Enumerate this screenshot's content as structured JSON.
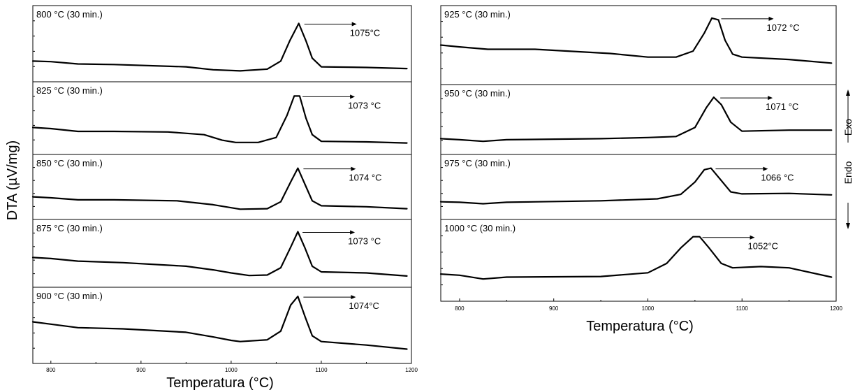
{
  "ylabel": "DTA (µV/mg)",
  "side_labels": {
    "exo": "Exo",
    "endo": "Endo"
  },
  "chart_data": [
    {
      "type": "line",
      "xlabel": "Temperatura (°C)",
      "ylabel": "DTA (µV/mg)",
      "xlim": [
        780,
        1200
      ],
      "x_ticks": [
        800,
        900,
        1000,
        1100,
        1200
      ],
      "y_ticks_labelled": false,
      "panels": [
        {
          "label": "800 °C (30 min.)",
          "peak_label": "1075°C",
          "peak_x": 1075,
          "points": [
            [
              780,
              0.2
            ],
            [
              800,
              0.19
            ],
            [
              830,
              0.15
            ],
            [
              870,
              0.14
            ],
            [
              950,
              0.1
            ],
            [
              980,
              0.05
            ],
            [
              1010,
              0.03
            ],
            [
              1040,
              0.06
            ],
            [
              1055,
              0.2
            ],
            [
              1065,
              0.55
            ],
            [
              1075,
              0.85
            ],
            [
              1083,
              0.55
            ],
            [
              1090,
              0.25
            ],
            [
              1100,
              0.1
            ],
            [
              1150,
              0.09
            ],
            [
              1195,
              0.07
            ]
          ]
        },
        {
          "label": "825 °C (30 min.)",
          "peak_label": "1073 °C",
          "peak_x": 1073,
          "points": [
            [
              780,
              0.33
            ],
            [
              800,
              0.31
            ],
            [
              830,
              0.26
            ],
            [
              870,
              0.26
            ],
            [
              930,
              0.25
            ],
            [
              970,
              0.2
            ],
            [
              990,
              0.1
            ],
            [
              1005,
              0.06
            ],
            [
              1030,
              0.06
            ],
            [
              1050,
              0.15
            ],
            [
              1062,
              0.55
            ],
            [
              1070,
              0.9
            ],
            [
              1076,
              0.9
            ],
            [
              1083,
              0.5
            ],
            [
              1090,
              0.2
            ],
            [
              1100,
              0.08
            ],
            [
              1150,
              0.07
            ],
            [
              1195,
              0.05
            ]
          ]
        },
        {
          "label": "850 °C (30 min.)",
          "peak_label": "1074 °C",
          "peak_x": 1074,
          "points": [
            [
              780,
              0.3
            ],
            [
              800,
              0.28
            ],
            [
              830,
              0.24
            ],
            [
              870,
              0.24
            ],
            [
              940,
              0.22
            ],
            [
              980,
              0.14
            ],
            [
              1000,
              0.08
            ],
            [
              1010,
              0.05
            ],
            [
              1040,
              0.06
            ],
            [
              1055,
              0.2
            ],
            [
              1066,
              0.6
            ],
            [
              1074,
              0.88
            ],
            [
              1082,
              0.55
            ],
            [
              1090,
              0.22
            ],
            [
              1100,
              0.12
            ],
            [
              1150,
              0.1
            ],
            [
              1195,
              0.06
            ]
          ]
        },
        {
          "label": "875 °C (30 min.)",
          "peak_label": "1073 °C",
          "peak_x": 1073,
          "points": [
            [
              780,
              0.42
            ],
            [
              800,
              0.4
            ],
            [
              830,
              0.35
            ],
            [
              880,
              0.32
            ],
            [
              950,
              0.25
            ],
            [
              980,
              0.18
            ],
            [
              1000,
              0.12
            ],
            [
              1020,
              0.07
            ],
            [
              1040,
              0.08
            ],
            [
              1055,
              0.22
            ],
            [
              1066,
              0.62
            ],
            [
              1074,
              0.92
            ],
            [
              1082,
              0.6
            ],
            [
              1090,
              0.25
            ],
            [
              1100,
              0.14
            ],
            [
              1150,
              0.12
            ],
            [
              1195,
              0.06
            ]
          ]
        },
        {
          "label": "900 °C (30 min.)",
          "peak_label": "1074°C",
          "peak_x": 1074,
          "points": [
            [
              780,
              0.56
            ],
            [
              800,
              0.52
            ],
            [
              830,
              0.46
            ],
            [
              880,
              0.44
            ],
            [
              950,
              0.38
            ],
            [
              980,
              0.3
            ],
            [
              1000,
              0.24
            ],
            [
              1010,
              0.22
            ],
            [
              1040,
              0.25
            ],
            [
              1055,
              0.4
            ],
            [
              1066,
              0.85
            ],
            [
              1074,
              1.0
            ],
            [
              1082,
              0.65
            ],
            [
              1090,
              0.32
            ],
            [
              1100,
              0.22
            ],
            [
              1150,
              0.16
            ],
            [
              1195,
              0.09
            ]
          ]
        }
      ]
    },
    {
      "type": "line",
      "xlabel": "Temperatura (°C)",
      "xlim": [
        780,
        1200
      ],
      "x_ticks": [
        800,
        900,
        1000,
        1100,
        1200
      ],
      "y_ticks_labelled": false,
      "panels": [
        {
          "label": "925 °C (30 min.)",
          "peak_label": "1072 °C",
          "peak_x": 1072,
          "points": [
            [
              780,
              0.5
            ],
            [
              800,
              0.47
            ],
            [
              830,
              0.43
            ],
            [
              880,
              0.43
            ],
            [
              960,
              0.36
            ],
            [
              1000,
              0.3
            ],
            [
              1030,
              0.3
            ],
            [
              1048,
              0.4
            ],
            [
              1060,
              0.7
            ],
            [
              1068,
              0.95
            ],
            [
              1075,
              0.92
            ],
            [
              1082,
              0.58
            ],
            [
              1090,
              0.35
            ],
            [
              1100,
              0.3
            ],
            [
              1150,
              0.26
            ],
            [
              1195,
              0.2
            ]
          ]
        },
        {
          "label": "950 °C (30 min.)",
          "peak_label": "1071 °C",
          "peak_x": 1071,
          "points": [
            [
              780,
              0.14
            ],
            [
              800,
              0.12
            ],
            [
              825,
              0.09
            ],
            [
              850,
              0.12
            ],
            [
              950,
              0.14
            ],
            [
              1000,
              0.16
            ],
            [
              1030,
              0.18
            ],
            [
              1050,
              0.35
            ],
            [
              1062,
              0.72
            ],
            [
              1070,
              0.92
            ],
            [
              1078,
              0.78
            ],
            [
              1088,
              0.45
            ],
            [
              1100,
              0.28
            ],
            [
              1150,
              0.3
            ],
            [
              1195,
              0.3
            ]
          ]
        },
        {
          "label": "975 °C (30 min.)",
          "peak_label": "1066 °C",
          "peak_x": 1066,
          "points": [
            [
              780,
              0.2
            ],
            [
              800,
              0.19
            ],
            [
              825,
              0.16
            ],
            [
              850,
              0.19
            ],
            [
              950,
              0.22
            ],
            [
              1010,
              0.26
            ],
            [
              1035,
              0.35
            ],
            [
              1050,
              0.6
            ],
            [
              1060,
              0.85
            ],
            [
              1067,
              0.88
            ],
            [
              1075,
              0.7
            ],
            [
              1088,
              0.4
            ],
            [
              1100,
              0.36
            ],
            [
              1150,
              0.37
            ],
            [
              1195,
              0.34
            ]
          ]
        },
        {
          "label": "1000 °C (30 min.)",
          "peak_label": "1052°C",
          "peak_x": 1052,
          "points": [
            [
              780,
              0.28
            ],
            [
              800,
              0.26
            ],
            [
              825,
              0.2
            ],
            [
              850,
              0.23
            ],
            [
              950,
              0.24
            ],
            [
              1000,
              0.3
            ],
            [
              1020,
              0.45
            ],
            [
              1035,
              0.7
            ],
            [
              1048,
              0.88
            ],
            [
              1055,
              0.88
            ],
            [
              1065,
              0.7
            ],
            [
              1078,
              0.45
            ],
            [
              1090,
              0.38
            ],
            [
              1120,
              0.4
            ],
            [
              1150,
              0.38
            ],
            [
              1195,
              0.23
            ]
          ]
        }
      ]
    }
  ]
}
